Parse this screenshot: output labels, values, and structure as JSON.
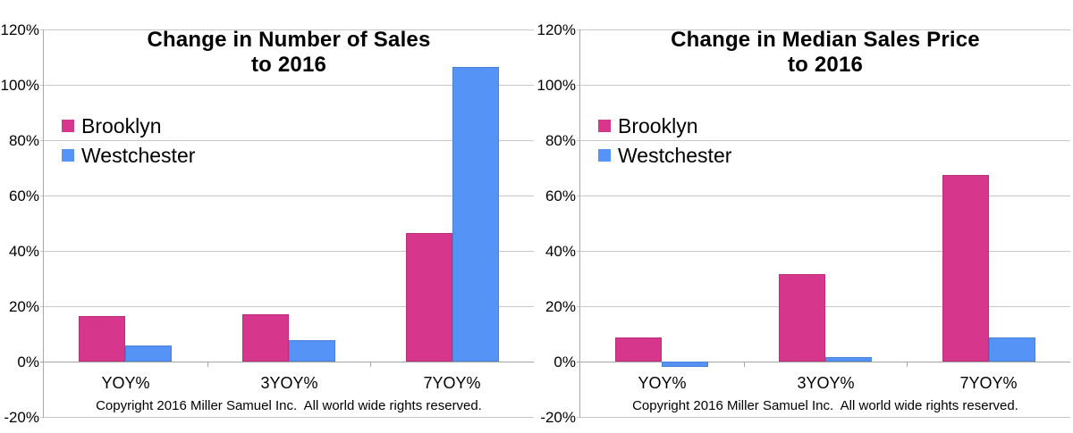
{
  "colors": {
    "brooklyn": "#D6378C",
    "westchester": "#5594F6",
    "gridline": "#C9C9C9",
    "axis": "#A9A9A9",
    "text": "#000000",
    "background": "#FFFFFF"
  },
  "chart_data": [
    {
      "type": "bar",
      "title_line1": "Change in Number of Sales",
      "title_line2": "to 2016",
      "categories": [
        "YOY%",
        "3YOY%",
        "7YOY%"
      ],
      "series": [
        {
          "name": "Brooklyn",
          "color": "#D6378C",
          "values": [
            16.4,
            17.2,
            46.6
          ]
        },
        {
          "name": "Westchester",
          "color": "#5594F6",
          "values": [
            5.8,
            7.7,
            106.5
          ]
        }
      ],
      "ylabel": "",
      "xlabel": "",
      "ylim": [
        -20,
        120
      ],
      "ytick_step": 20,
      "ytick_labels": [
        "120%",
        "100%",
        "80%",
        "60%",
        "40%",
        "20%",
        "0%",
        "-20%"
      ],
      "grid": true,
      "legend_position": "inside-upper-left",
      "copyright": "Copyright 2016 Miller Samuel Inc.  All world wide rights reserved."
    },
    {
      "type": "bar",
      "title_line1": "Change in Median Sales Price",
      "title_line2": "to 2016",
      "categories": [
        "YOY%",
        "3YOY%",
        "7YOY%"
      ],
      "series": [
        {
          "name": "Brooklyn",
          "color": "#D6378C",
          "values": [
            8.8,
            31.6,
            67.3
          ]
        },
        {
          "name": "Westchester",
          "color": "#5594F6",
          "values": [
            -2.0,
            1.6,
            8.8
          ]
        }
      ],
      "ylabel": "",
      "xlabel": "",
      "ylim": [
        -20,
        120
      ],
      "ytick_step": 20,
      "ytick_labels": [
        "120%",
        "100%",
        "80%",
        "60%",
        "40%",
        "20%",
        "0%",
        "-20%"
      ],
      "grid": true,
      "legend_position": "inside-upper-left",
      "copyright": "Copyright 2016 Miller Samuel Inc.  All world wide rights reserved."
    }
  ]
}
